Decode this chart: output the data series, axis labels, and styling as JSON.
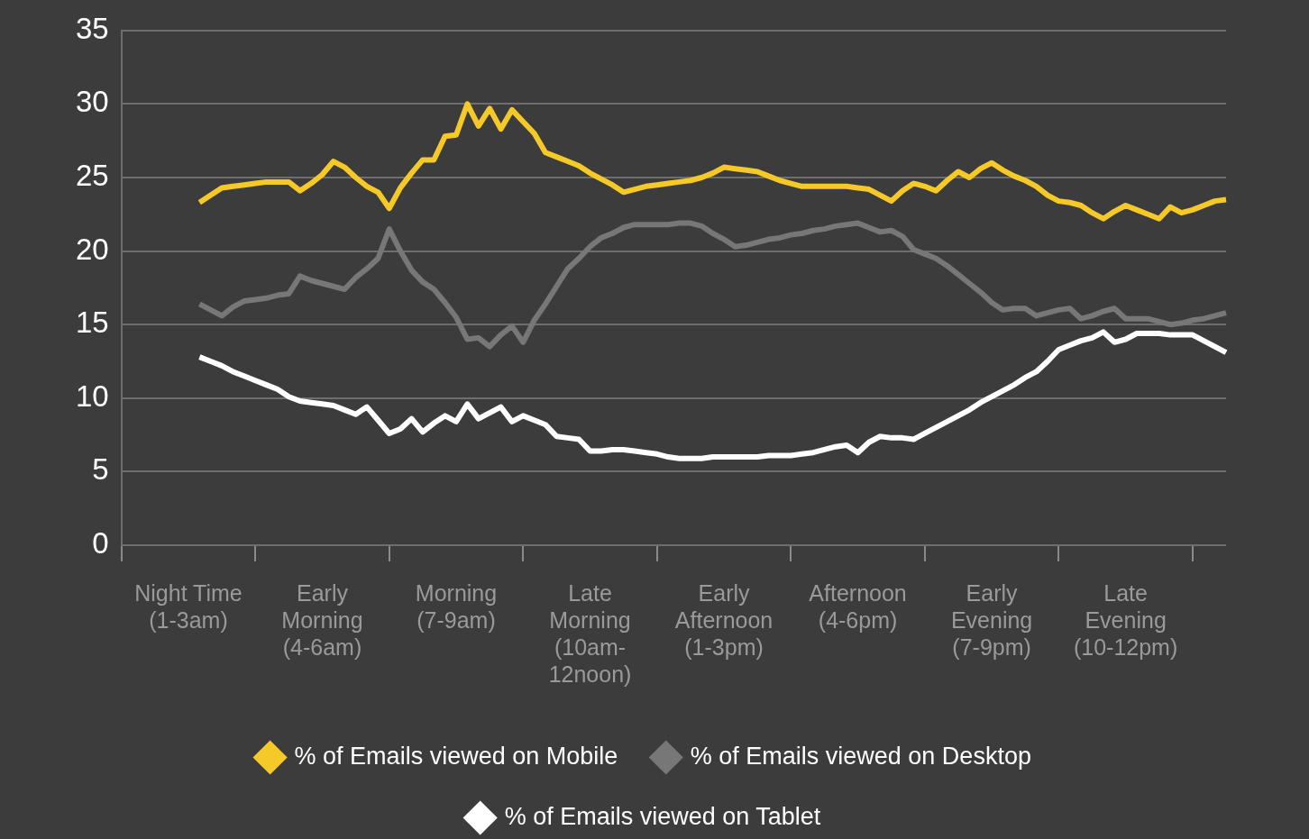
{
  "chart_data": {
    "type": "line",
    "categories": [
      null,
      null,
      null,
      null,
      null,
      null,
      "Night Time\n(1-3am)",
      null,
      null,
      null,
      null,
      null,
      null,
      null,
      null,
      null,
      null,
      null,
      "Early\nMorning\n(4-6am)",
      null,
      null,
      null,
      null,
      null,
      null,
      null,
      null,
      null,
      null,
      null,
      "Morning\n(7-9am)",
      null,
      null,
      null,
      null,
      null,
      null,
      null,
      null,
      null,
      null,
      null,
      "Late\nMorning\n(10am-\n12noon)",
      null,
      null,
      null,
      null,
      null,
      null,
      null,
      null,
      null,
      null,
      null,
      "Early\nAfternoon\n(1-3pm)",
      null,
      null,
      null,
      null,
      null,
      null,
      null,
      null,
      null,
      null,
      null,
      "Afternoon\n(4-6pm)",
      null,
      null,
      null,
      null,
      null,
      null,
      null,
      null,
      null,
      null,
      null,
      "Early\nEvening\n(7-9pm)",
      null,
      null,
      null,
      null,
      null,
      null,
      null,
      null,
      null,
      null,
      null,
      "Late\nEvening\n(10-12pm)",
      null,
      null,
      null,
      null,
      null,
      null,
      null,
      null,
      null
    ],
    "ylim": [
      0,
      35
    ],
    "yticks": [
      0,
      5,
      10,
      15,
      20,
      25,
      30,
      35
    ],
    "grid": "y",
    "legend": "bottom",
    "series": [
      {
        "name": "% of Emails viewed on Mobile",
        "color": "#f5c928",
        "values": [
          null,
          null,
          null,
          null,
          null,
          null,
          null,
          23.3,
          23.8,
          24.3,
          24.4,
          24.5,
          24.6,
          24.7,
          24.7,
          24.7,
          24.1,
          24.6,
          25.2,
          26.1,
          25.7,
          25.0,
          24.4,
          24.0,
          22.9,
          24.3,
          25.3,
          26.2,
          26.2,
          27.8,
          27.9,
          30.0,
          28.5,
          29.7,
          28.3,
          29.6,
          28.8,
          28.0,
          26.7,
          26.4,
          26.1,
          25.8,
          25.3,
          24.9,
          24.5,
          24.0,
          24.2,
          24.4,
          24.5,
          24.6,
          24.7,
          24.8,
          25.0,
          25.3,
          25.7,
          25.6,
          25.5,
          25.4,
          25.1,
          24.8,
          24.6,
          24.4,
          24.4,
          24.4,
          24.4,
          24.4,
          24.3,
          24.2,
          23.8,
          23.4,
          24.1,
          24.6,
          24.4,
          24.1,
          24.8,
          25.4,
          25.0,
          25.6,
          26.0,
          25.5,
          25.1,
          24.8,
          24.4,
          23.8,
          23.4,
          23.3,
          23.1,
          22.6,
          22.2,
          22.7,
          23.1,
          22.8,
          22.5,
          22.2,
          23.0,
          22.6,
          22.8,
          23.1,
          23.4,
          23.5
        ]
      },
      {
        "name": "% of Emails viewed on Desktop",
        "color": "#777777",
        "values": [
          null,
          null,
          null,
          null,
          null,
          null,
          null,
          16.4,
          16.0,
          15.6,
          16.2,
          16.6,
          16.7,
          16.8,
          17.0,
          17.1,
          18.3,
          18.0,
          17.8,
          17.6,
          17.4,
          18.2,
          18.8,
          19.5,
          21.5,
          20.0,
          18.7,
          17.9,
          17.4,
          16.5,
          15.5,
          14.0,
          14.1,
          13.5,
          14.3,
          14.9,
          13.8,
          15.3,
          16.4,
          17.6,
          18.8,
          19.5,
          20.3,
          20.9,
          21.2,
          21.6,
          21.8,
          21.8,
          21.8,
          21.8,
          21.9,
          21.9,
          21.7,
          21.2,
          20.8,
          20.3,
          20.4,
          20.6,
          20.8,
          20.9,
          21.1,
          21.2,
          21.4,
          21.5,
          21.7,
          21.8,
          21.9,
          21.6,
          21.3,
          21.4,
          21.0,
          20.1,
          19.8,
          19.5,
          19.0,
          18.4,
          17.8,
          17.2,
          16.5,
          16.0,
          16.1,
          16.1,
          15.6,
          15.8,
          16.0,
          16.1,
          15.4,
          15.6,
          15.9,
          16.1,
          15.4,
          15.4,
          15.4,
          15.2,
          15.0,
          15.1,
          15.3,
          15.4,
          15.6,
          15.8
        ]
      },
      {
        "name": "% of Emails viewed on Tablet",
        "color": "#ffffff",
        "values": [
          null,
          null,
          null,
          null,
          null,
          null,
          null,
          12.8,
          12.5,
          12.2,
          11.8,
          11.5,
          11.2,
          10.9,
          10.6,
          10.1,
          9.8,
          9.7,
          9.6,
          9.5,
          9.2,
          8.9,
          9.4,
          8.5,
          7.6,
          7.9,
          8.6,
          7.7,
          8.3,
          8.8,
          8.4,
          9.6,
          8.6,
          9.0,
          9.4,
          8.4,
          8.8,
          8.5,
          8.2,
          7.4,
          7.3,
          7.2,
          6.4,
          6.4,
          6.5,
          6.5,
          6.4,
          6.3,
          6.2,
          6.0,
          5.9,
          5.9,
          5.9,
          6.0,
          6.0,
          6.0,
          6.0,
          6.0,
          6.1,
          6.1,
          6.1,
          6.2,
          6.3,
          6.5,
          6.7,
          6.8,
          6.3,
          7.0,
          7.4,
          7.3,
          7.3,
          7.2,
          7.6,
          8.0,
          8.4,
          8.8,
          9.2,
          9.7,
          10.1,
          10.5,
          10.9,
          11.4,
          11.8,
          12.5,
          13.3,
          13.6,
          13.9,
          14.1,
          14.5,
          13.8,
          14.0,
          14.4,
          14.4,
          14.4,
          14.3,
          14.3,
          14.3,
          13.9,
          13.5,
          13.1
        ]
      }
    ]
  }
}
